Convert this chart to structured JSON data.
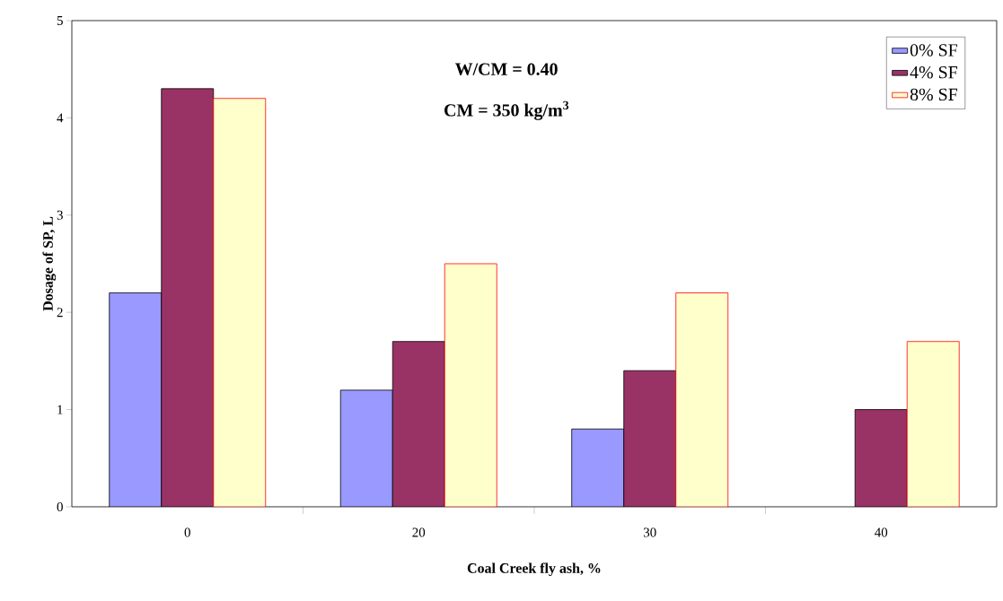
{
  "chart_data": {
    "type": "bar",
    "xlabel": "Coal Creek fly ash, %",
    "ylabel": "Dosage of SP, L",
    "categories": [
      "0",
      "20",
      "30",
      "40"
    ],
    "series": [
      {
        "name": "0% SF",
        "color": "#9999ff",
        "values": [
          2.2,
          1.2,
          0.8,
          null
        ]
      },
      {
        "name": "4% SF",
        "color": "#993366",
        "values": [
          4.3,
          1.7,
          1.4,
          1.0
        ]
      },
      {
        "name": "8% SF",
        "color": "#ffffcc",
        "values": [
          4.2,
          2.5,
          2.2,
          1.7
        ]
      }
    ],
    "ylim": [
      0,
      5
    ],
    "yticks": [
      0,
      1,
      2,
      3,
      4,
      5
    ],
    "grid": false,
    "legend": "top right",
    "annotations": [
      "W/CM = 0.40",
      "CM = 350 kg/m$^{3}$"
    ]
  }
}
